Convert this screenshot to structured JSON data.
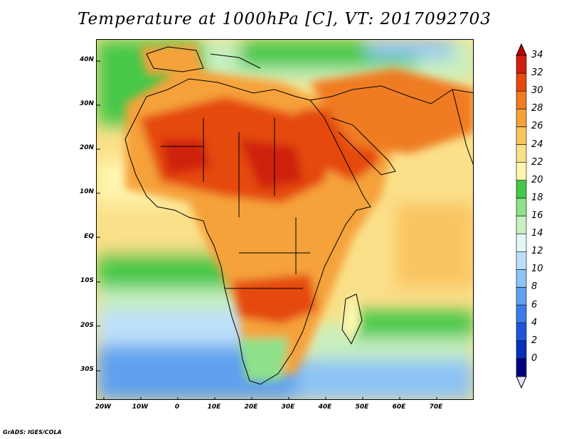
{
  "title": "Temperature at 1000hPa [C], VT: 2017092703",
  "footer": "GrADS: IGES/COLA",
  "map": {
    "variable": "Temperature at 1000hPa",
    "unit": "C",
    "valid_time": "2017092703",
    "lon_range": [
      -22,
      80
    ],
    "lat_range": [
      -38,
      46
    ],
    "lat_ticks": [
      "40N",
      "30N",
      "20N",
      "10N",
      "EQ",
      "10S",
      "20S",
      "30S"
    ],
    "lon_ticks": [
      "20W",
      "10W",
      "0",
      "10E",
      "20E",
      "30E",
      "40E",
      "50E",
      "60E",
      "70E"
    ]
  },
  "colorbar": {
    "labels": [
      "0",
      "2",
      "4",
      "6",
      "8",
      "10",
      "12",
      "14",
      "16",
      "18",
      "20",
      "22",
      "24",
      "26",
      "28",
      "30",
      "32",
      "34"
    ],
    "colors": [
      "#000080",
      "#0a2fb8",
      "#1e55d8",
      "#3a7de8",
      "#5fa0ef",
      "#8cc3f5",
      "#bde0fa",
      "#e3f7f5",
      "#c8f0c0",
      "#8fe08a",
      "#46c84a",
      "#fff6b0",
      "#fbe08a",
      "#f9c560",
      "#f5a23a",
      "#ef7c20",
      "#e54a10",
      "#cf2010"
    ],
    "below_color": "#e6e0ff",
    "above_color": "#c00000"
  }
}
